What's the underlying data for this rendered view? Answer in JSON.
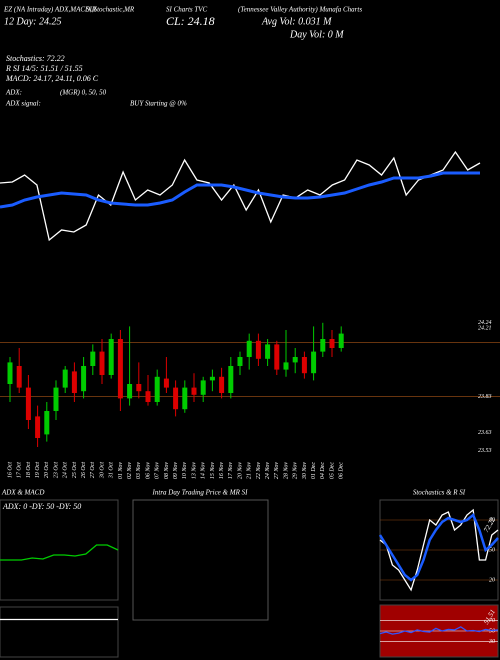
{
  "header": {
    "line1": [
      "EZ (NA Intraday) ADX,MACD,R",
      "SI,Stochastic,MR",
      "SI Charts TVC",
      "(Tennessee Valley Authority) Munafa Charts"
    ],
    "day12": "12 Day: 24.25",
    "close": "CL: 24.18",
    "avg_vol": "Avg Vol: 0.031 M",
    "day_vol": "Day Vol: 0  M",
    "stochastics": "Stochastics: 72.22",
    "rsi": "R SI 14/5: 51.51 / 51.55",
    "macd": "MACD: 24.17, 24.11, 0.06 C",
    "adx": "ADX:",
    "mgr": "(MGR) 0, 50, 50",
    "adx_signal": "ADX signal:",
    "signal": "BUY Starting @ 0%"
  },
  "chart_data": [
    {
      "type": "line",
      "ylim": [
        23.5,
        24.7
      ],
      "series": [
        {
          "color": "#ffffff",
          "values": [
            24.17,
            24.18,
            24.25,
            24.15,
            23.6,
            23.7,
            23.68,
            23.75,
            24.05,
            23.95,
            24.28,
            24.0,
            24.1,
            24.05,
            24.15,
            24.4,
            24.2,
            24.17,
            24.0,
            24.15,
            23.9,
            24.1,
            23.78,
            24.05,
            24.02,
            24.1,
            24.05,
            24.15,
            24.2,
            24.4,
            24.35,
            24.25,
            24.42,
            24.05,
            24.2,
            24.25,
            24.3,
            24.48,
            24.3,
            24.37
          ]
        },
        {
          "color": "#1a5cff",
          "values": [
            23.93,
            23.95,
            24.0,
            24.03,
            24.05,
            24.07,
            24.06,
            24.05,
            24.0,
            23.97,
            23.96,
            23.95,
            23.95,
            23.97,
            24.0,
            24.08,
            24.15,
            24.15,
            24.15,
            24.13,
            24.1,
            24.07,
            24.05,
            24.03,
            24.02,
            24.02,
            24.03,
            24.05,
            24.07,
            24.11,
            24.15,
            24.18,
            24.22,
            24.22,
            24.22,
            24.24,
            24.27,
            24.27,
            24.27,
            24.27
          ]
        }
      ]
    },
    {
      "type": "candlestick",
      "ylim": [
        23.5,
        24.3
      ],
      "yticks": [
        24.24,
        24.21,
        23.83,
        23.63,
        23.53
      ],
      "level_lines": [
        24.13,
        23.83
      ],
      "level_color": "#8b4513",
      "up_color": "#00cc00",
      "down_color": "#dd0000",
      "categories": [
        "16 Oct",
        "17 Oct",
        "18 Oct",
        "19 Oct",
        "20 Oct",
        "23 Oct",
        "24 Oct",
        "25 Oct",
        "26 Oct",
        "27 Oct",
        "30 Oct",
        "31 Oct",
        "01 Nov",
        "02 Nov",
        "03 Nov",
        "06 Nov",
        "07 Nov",
        "08 Nov",
        "09 Nov",
        "10 Nov",
        "13 Nov",
        "14 Nov",
        "15 Nov",
        "16 Nov",
        "17 Nov",
        "20 Nov",
        "21 Nov",
        "22 Nov",
        "24 Nov",
        "27 Nov",
        "28 Nov",
        "29 Nov",
        "30 Nov",
        "01 Dec",
        "04 Dec",
        "05 Dec",
        "06 Dec"
      ],
      "open": [
        23.9,
        24.0,
        23.88,
        23.72,
        23.62,
        23.75,
        23.88,
        23.97,
        23.86,
        24.0,
        24.08,
        23.95,
        24.15,
        23.82,
        23.9,
        23.86,
        23.8,
        23.93,
        23.88,
        23.76,
        23.88,
        23.84,
        23.92,
        23.94,
        23.85,
        24.0,
        24.05,
        24.14,
        24.04,
        24.12,
        23.98,
        24.02,
        24.05,
        23.96,
        24.08,
        24.15,
        24.1
      ],
      "high": [
        24.05,
        24.1,
        23.95,
        23.78,
        23.8,
        23.92,
        24.0,
        24.02,
        24.05,
        24.12,
        24.15,
        24.18,
        24.2,
        24.22,
        24.02,
        23.95,
        23.98,
        24.05,
        23.92,
        23.92,
        23.96,
        23.94,
        23.98,
        23.99,
        24.05,
        24.08,
        24.18,
        24.18,
        24.15,
        24.14,
        24.2,
        24.1,
        24.08,
        24.22,
        24.24,
        24.2,
        24.22
      ],
      "low": [
        23.8,
        23.85,
        23.65,
        23.55,
        23.58,
        23.7,
        23.85,
        23.8,
        23.82,
        23.95,
        23.9,
        23.93,
        23.75,
        23.78,
        23.82,
        23.78,
        23.78,
        23.85,
        23.72,
        23.74,
        23.8,
        23.8,
        23.86,
        23.82,
        23.82,
        23.95,
        23.98,
        24.0,
        24.0,
        23.95,
        23.94,
        23.96,
        23.93,
        23.92,
        24.05,
        24.05,
        24.08
      ],
      "close": [
        24.02,
        23.88,
        23.7,
        23.6,
        23.75,
        23.88,
        23.98,
        23.85,
        24.0,
        24.08,
        23.95,
        24.15,
        23.82,
        23.9,
        23.86,
        23.8,
        23.94,
        23.88,
        23.76,
        23.88,
        23.84,
        23.92,
        23.94,
        23.85,
        24.0,
        24.05,
        24.14,
        24.04,
        24.12,
        23.98,
        24.02,
        24.05,
        23.96,
        24.08,
        24.15,
        24.1,
        24.18
      ]
    },
    {
      "type": "line",
      "title": "ADX & MACD",
      "annotation": "ADX: 0  -DY: 50  -DY: 50",
      "ylim": [
        0,
        100
      ],
      "series": [
        {
          "color": "#00cc00",
          "values": [
            40,
            40,
            40,
            42,
            41,
            45,
            45,
            44,
            46,
            55,
            55,
            50
          ]
        }
      ]
    },
    {
      "type": "line",
      "ylim": [
        0,
        100
      ],
      "series": [
        {
          "color": "#ffffff",
          "values": [
            75,
            75,
            75,
            75,
            75,
            75,
            75,
            75,
            75,
            75
          ]
        }
      ]
    },
    {
      "type": "panel",
      "title": "Intra Day Trading Price & MR SI"
    },
    {
      "type": "line",
      "title": "Stochastics & R SI",
      "ylim": [
        0,
        100
      ],
      "yticks": [
        20,
        50,
        80
      ],
      "grid_color": "#8b4513",
      "value_label": "72.22",
      "series": [
        {
          "color": "#ffffff",
          "values": [
            60,
            55,
            35,
            30,
            20,
            10,
            30,
            55,
            80,
            75,
            85,
            88,
            70,
            75,
            85,
            90,
            40,
            40,
            65,
            70
          ]
        },
        {
          "color": "#1a5cff",
          "values": [
            65,
            55,
            45,
            35,
            25,
            20,
            25,
            40,
            60,
            70,
            78,
            82,
            80,
            78,
            80,
            85,
            70,
            50,
            55,
            62
          ]
        }
      ]
    },
    {
      "type": "line",
      "ylim": [
        0,
        100
      ],
      "yticks": [
        30,
        50,
        70
      ],
      "background": "#a00000",
      "grid_color": "#ffffff",
      "value_label": "51.51",
      "series": [
        {
          "color": "#3355ff",
          "values": [
            45,
            48,
            44,
            46,
            50,
            47,
            52,
            49,
            48,
            55,
            50,
            53,
            52,
            58,
            50,
            51,
            49,
            53,
            51,
            52
          ]
        }
      ]
    }
  ]
}
